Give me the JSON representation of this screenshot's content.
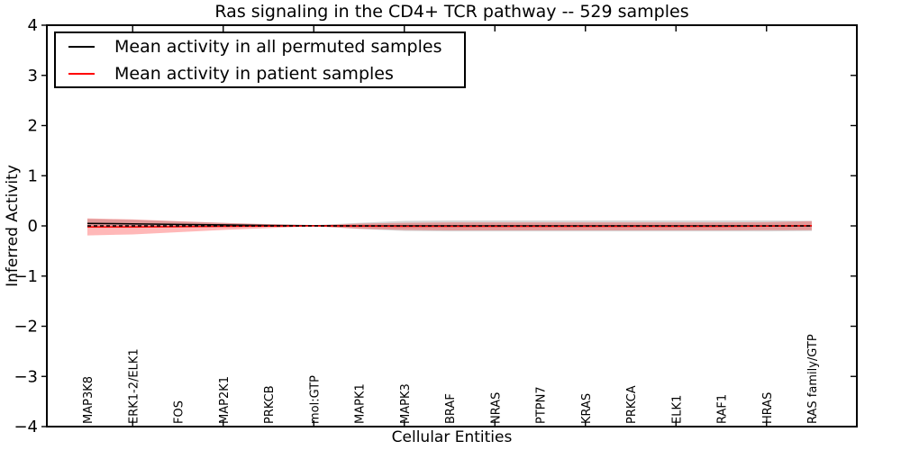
{
  "chart_data": {
    "type": "line",
    "title": "Ras signaling in the CD4+ TCR pathway -- 529 samples",
    "xlabel": "Cellular Entities",
    "ylabel": "Inferred Activity",
    "ylim": [
      -4,
      4
    ],
    "ytick_values": [
      4,
      3,
      2,
      1,
      0,
      -1,
      -2,
      -3,
      -4
    ],
    "ytick_labels": [
      "4",
      "3",
      "2",
      "1",
      "0",
      "−1",
      "−2",
      "−3",
      "−4"
    ],
    "grid": false,
    "legend_position": "upper left",
    "categories": [
      "MAP3K8",
      "ERK1-2/ELK1",
      "FOS",
      "MAP2K1",
      "PRKCB",
      "mol:GTP",
      "MAPK1",
      "MAPK3",
      "BRAF",
      "NRAS",
      "PTPN7",
      "KRAS",
      "PRKCA",
      "ELK1",
      "RAF1",
      "HRAS",
      "RAS family/GTP"
    ],
    "top_tick_indices": [
      1,
      3,
      5,
      7,
      9,
      11,
      13,
      15
    ],
    "series": [
      {
        "name": "Mean activity in all permuted samples",
        "color": "#000000",
        "style": "solid",
        "values": [
          0.05,
          0.04,
          0.03,
          0.02,
          0.01,
          0.005,
          0.0,
          0.0,
          0.0,
          0.0,
          0.0,
          0.0,
          0.0,
          0.0,
          0.0,
          0.0,
          0.0
        ],
        "band_std": [
          0.09,
          0.08,
          0.06,
          0.04,
          0.02,
          0.01,
          0.06,
          0.1,
          0.11,
          0.11,
          0.11,
          0.11,
          0.11,
          0.11,
          0.11,
          0.11,
          0.1
        ],
        "band_color": "#808080",
        "band_opacity": 0.32
      },
      {
        "name": "Mean activity in patient samples",
        "color": "#ff0000",
        "style": "solid",
        "values": [
          -0.02,
          -0.02,
          -0.015,
          -0.01,
          -0.005,
          0.0,
          -0.005,
          -0.01,
          -0.01,
          -0.01,
          -0.01,
          -0.01,
          -0.01,
          -0.01,
          -0.01,
          -0.005,
          0.005
        ],
        "band_std": [
          0.17,
          0.15,
          0.11,
          0.07,
          0.04,
          0.01,
          0.05,
          0.07,
          0.08,
          0.08,
          0.08,
          0.08,
          0.08,
          0.08,
          0.08,
          0.08,
          0.09
        ],
        "band_color": "#ff0000",
        "band_opacity": 0.28
      }
    ],
    "zero_line": {
      "value": 0,
      "style": "dashed",
      "color": "#000000"
    }
  }
}
